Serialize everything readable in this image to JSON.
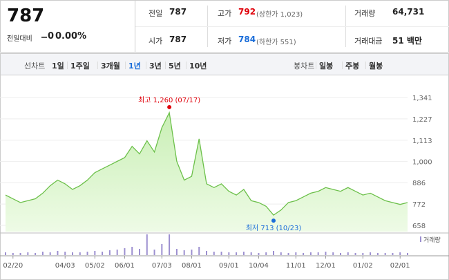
{
  "quote": {
    "price": "787",
    "change_label": "전일대비",
    "change": "0",
    "change_pct": "0.00%"
  },
  "stats": [
    [
      {
        "label": "전일",
        "value": "787"
      },
      {
        "label": "고가",
        "value": "792",
        "color": "#e0000a",
        "note": "(상한가 1,023)"
      },
      {
        "label": "거래량",
        "value": "64,731"
      }
    ],
    [
      {
        "label": "시가",
        "value": "787"
      },
      {
        "label": "저가",
        "value": "784",
        "color": "#1a6dd9",
        "note": "(하한가 551)"
      },
      {
        "label": "거래대금",
        "value": "51 백만"
      }
    ]
  ],
  "tabs": {
    "line_label": "선차트",
    "line": [
      "1일",
      "1주일",
      "3개월",
      "1년",
      "3년",
      "5년",
      "10년"
    ],
    "selected": 3,
    "selected_color": "#1a6dd9",
    "candle_label": "봉차트",
    "candle": [
      "일봉",
      "주봉",
      "월봉"
    ]
  },
  "chart_data": {
    "type": "area",
    "categories": [
      null,
      "02/20",
      null,
      null,
      null,
      null,
      null,
      null,
      "04/03",
      null,
      null,
      null,
      "05/02",
      null,
      null,
      null,
      "06/01",
      null,
      null,
      null,
      null,
      "07/03",
      null,
      null,
      null,
      "08/01",
      null,
      null,
      null,
      null,
      "09/01",
      null,
      null,
      null,
      "10/04",
      null,
      null,
      null,
      null,
      "11/01",
      null,
      null,
      null,
      "12/01",
      null,
      null,
      null,
      null,
      "01/02",
      null,
      null,
      null,
      null,
      "02/01",
      null
    ],
    "values": [
      820,
      800,
      780,
      790,
      800,
      830,
      870,
      900,
      880,
      850,
      870,
      900,
      940,
      960,
      980,
      1000,
      1020,
      1080,
      1040,
      1110,
      1050,
      1180,
      1260,
      1000,
      900,
      920,
      1120,
      880,
      860,
      880,
      840,
      820,
      850,
      790,
      780,
      760,
      713,
      740,
      780,
      790,
      810,
      830,
      840,
      860,
      850,
      840,
      860,
      840,
      820,
      830,
      810,
      790,
      780,
      770,
      780
    ],
    "color": "#6cc04a",
    "volume": [
      4,
      3,
      3,
      4,
      3,
      5,
      4,
      6,
      5,
      4,
      4,
      5,
      6,
      5,
      7,
      8,
      10,
      12,
      9,
      30,
      8,
      16,
      30,
      9,
      7,
      8,
      12,
      6,
      5,
      5,
      4,
      4,
      5,
      4,
      3,
      4,
      6,
      4,
      3,
      4,
      3,
      4,
      4,
      5,
      4,
      3,
      4,
      3,
      3,
      4,
      3,
      3,
      3,
      4,
      3
    ],
    "volume_label": "거래량",
    "volume_color": "#9c8fd0",
    "ylim": [
      658,
      1341
    ],
    "yticks": [
      658,
      772,
      886,
      {
        "value": 1000,
        "label": "1,000"
      },
      {
        "value": 1113,
        "label": "1,113"
      },
      {
        "value": 1227,
        "label": "1,227"
      },
      {
        "value": 1341,
        "label": "1,341"
      }
    ],
    "grid": true,
    "high_label": "최고 1,260 (07/17)",
    "high_color": "#e0000a",
    "low_label": "최저 713 (10/23)",
    "low_color": "#1a6dd9"
  }
}
